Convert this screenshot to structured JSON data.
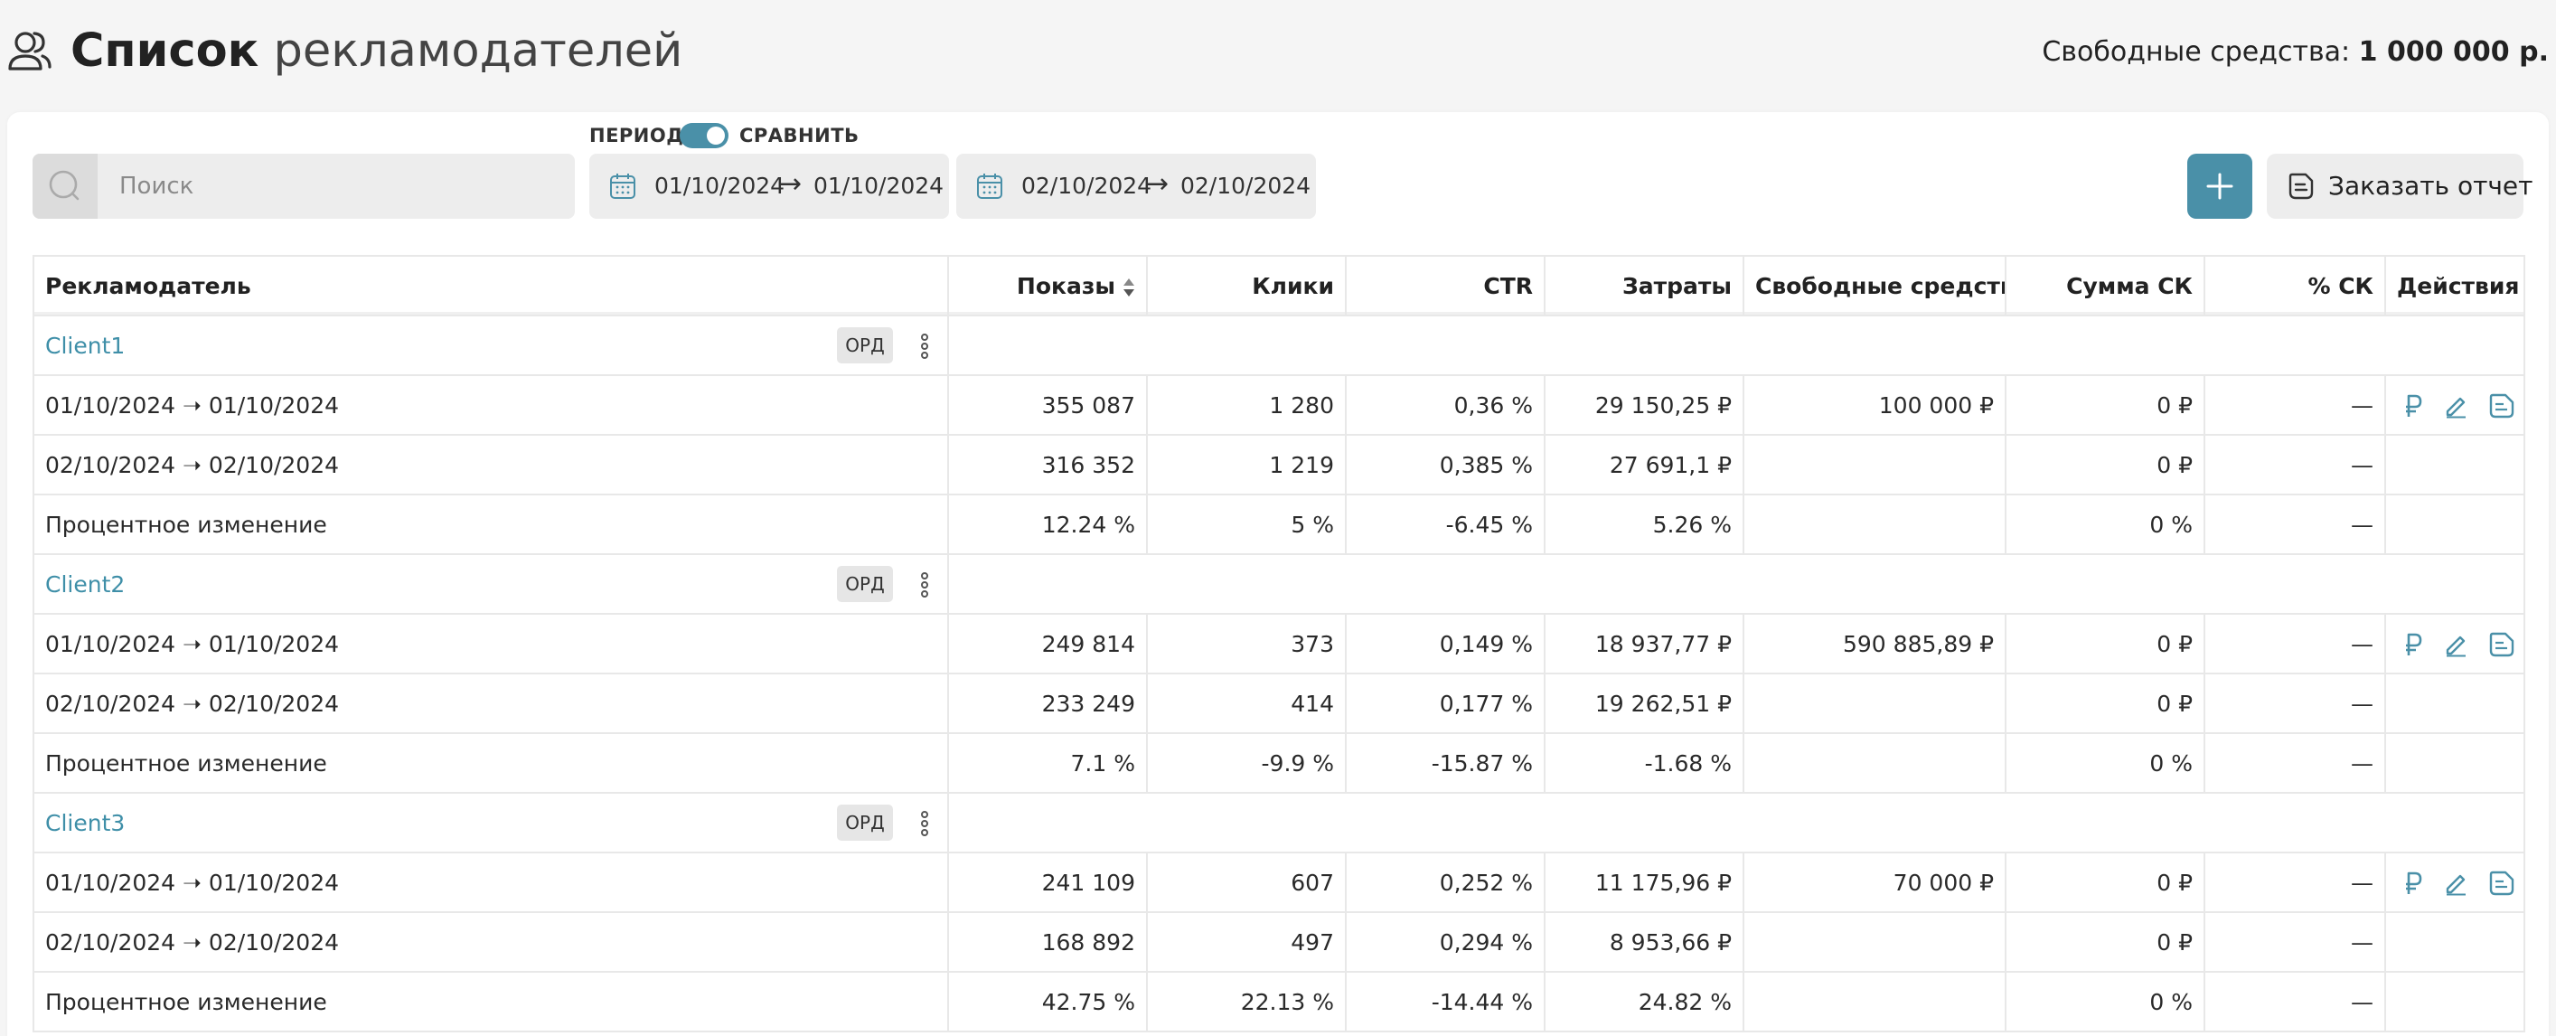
{
  "header": {
    "title_bold": "Список",
    "title_rest": "рекламодателей",
    "funds_label": "Свободные средства:",
    "funds_value": "1 000 000 р."
  },
  "search": {
    "placeholder": "Поиск",
    "value": ""
  },
  "period": {
    "label": "ПЕРИОД",
    "compare_label": "СРАВНИТЬ",
    "compare_enabled": true,
    "range1": {
      "from": "01/10/2024",
      "to": "01/10/2024"
    },
    "range2": {
      "from": "02/10/2024",
      "to": "02/10/2024"
    }
  },
  "toolbar": {
    "report_label": "Заказать отчет"
  },
  "colors": {
    "accent": "#4a90a8",
    "link": "#3f8fa8"
  },
  "table": {
    "columns": [
      "Рекламодатель",
      "Показы",
      "Клики",
      "CTR",
      "Затраты",
      "Свободные средства",
      "Сумма СК",
      "% СК",
      "Действия"
    ],
    "ord_label": "ОРД",
    "clients": [
      {
        "name": "Client1",
        "rows": [
          {
            "period": "01/10/2024 ➝ 01/10/2024",
            "shows": "355 087",
            "clicks": "1 280",
            "ctr": "0,36 %",
            "cost": "29 150,25 ₽",
            "free": "100 000 ₽",
            "sk_sum": "0 ₽",
            "sk_pct": "—"
          },
          {
            "period": "02/10/2024 ➝ 02/10/2024",
            "shows": "316 352",
            "clicks": "1 219",
            "ctr": "0,385 %",
            "cost": "27 691,1 ₽",
            "free": "",
            "sk_sum": "0 ₽",
            "sk_pct": "—"
          }
        ],
        "change": {
          "label": "Процентное изменение",
          "shows": "12.24 %",
          "clicks": "5 %",
          "ctr": "-6.45 %",
          "cost": "5.26 %",
          "sk_sum": "0 %",
          "sk_pct": "—"
        }
      },
      {
        "name": "Client2",
        "rows": [
          {
            "period": "01/10/2024 ➝ 01/10/2024",
            "shows": "249 814",
            "clicks": "373",
            "ctr": "0,149 %",
            "cost": "18 937,77 ₽",
            "free": "590 885,89 ₽",
            "sk_sum": "0 ₽",
            "sk_pct": "—"
          },
          {
            "period": "02/10/2024 ➝ 02/10/2024",
            "shows": "233 249",
            "clicks": "414",
            "ctr": "0,177 %",
            "cost": "19 262,51 ₽",
            "free": "",
            "sk_sum": "0 ₽",
            "sk_pct": "—"
          }
        ],
        "change": {
          "label": "Процентное изменение",
          "shows": "7.1 %",
          "clicks": "-9.9 %",
          "ctr": "-15.87 %",
          "cost": "-1.68 %",
          "sk_sum": "0 %",
          "sk_pct": "—"
        }
      },
      {
        "name": "Client3",
        "rows": [
          {
            "period": "01/10/2024 ➝ 01/10/2024",
            "shows": "241 109",
            "clicks": "607",
            "ctr": "0,252 %",
            "cost": "11 175,96 ₽",
            "free": "70 000 ₽",
            "sk_sum": "0 ₽",
            "sk_pct": "—"
          },
          {
            "period": "02/10/2024 ➝ 02/10/2024",
            "shows": "168 892",
            "clicks": "497",
            "ctr": "0,294 %",
            "cost": "8 953,66 ₽",
            "free": "",
            "sk_sum": "0 ₽",
            "sk_pct": "—"
          }
        ],
        "change": {
          "label": "Процентное изменение",
          "shows": "42.75 %",
          "clicks": "22.13 %",
          "ctr": "-14.44 %",
          "cost": "24.82 %",
          "sk_sum": "0 %",
          "sk_pct": "—"
        }
      }
    ],
    "action_icons": [
      "ruble-icon",
      "edit-icon",
      "document-icon"
    ]
  }
}
